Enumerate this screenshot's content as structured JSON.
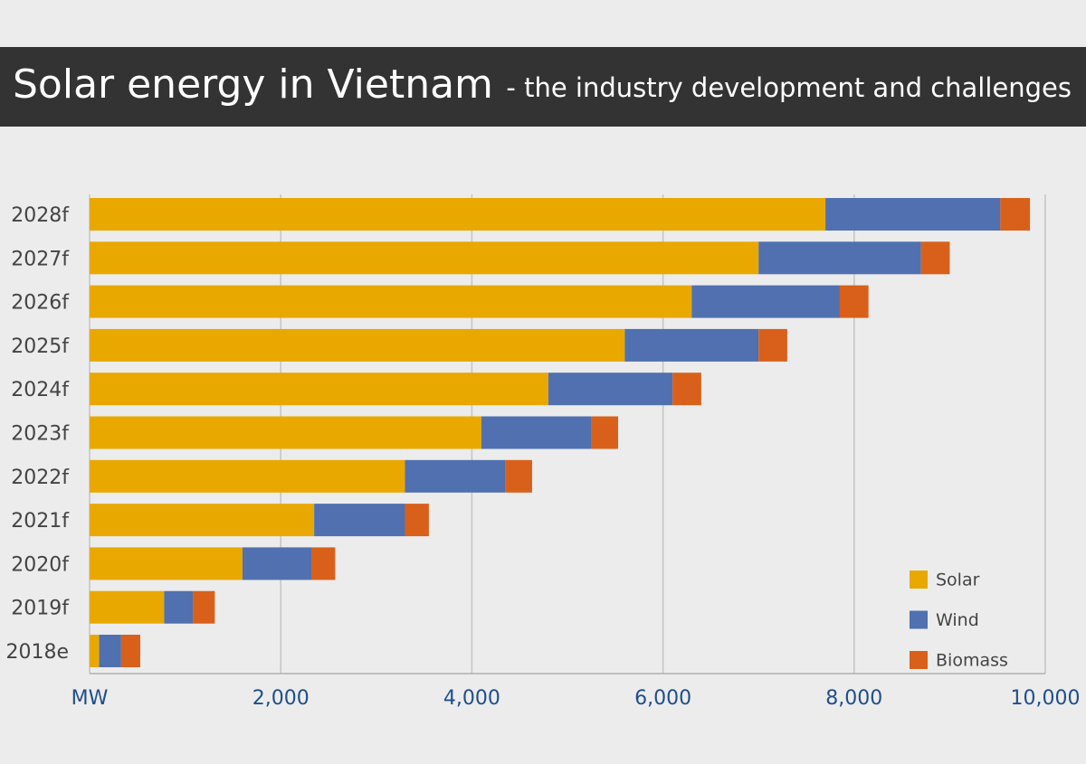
{
  "chart_data": {
    "type": "stacked-barh",
    "title": "Solar energy in Vietnam",
    "subtitle": "- the industry development and challenges",
    "categories": [
      "2028f",
      "2027f",
      "2026f",
      "2025f",
      "2024f",
      "2023f",
      "2022f",
      "2021f",
      "2020f",
      "2019f",
      "2018e"
    ],
    "series": [
      {
        "name": "Solar",
        "color": "#e8a800",
        "values": [
          7700,
          7000,
          6300,
          5600,
          4800,
          4100,
          3300,
          2350,
          1600,
          780,
          100
        ]
      },
      {
        "name": "Wind",
        "color": "#5070b0",
        "values": [
          1830,
          1700,
          1550,
          1400,
          1300,
          1150,
          1050,
          950,
          720,
          300,
          230
        ]
      },
      {
        "name": "Biomass",
        "color": "#d9601a",
        "values": [
          310,
          300,
          300,
          300,
          300,
          280,
          280,
          250,
          250,
          230,
          200
        ]
      }
    ],
    "xlim": [
      0,
      10000
    ],
    "xticks": [
      {
        "value": 0,
        "label": "MW"
      },
      {
        "value": 2000,
        "label": "2,000"
      },
      {
        "value": 4000,
        "label": "4,000"
      },
      {
        "value": 6000,
        "label": "6,000"
      },
      {
        "value": 8000,
        "label": "8,000"
      },
      {
        "value": 10000,
        "label": "10,000"
      }
    ],
    "grid": true,
    "legend": "bottom-right"
  }
}
